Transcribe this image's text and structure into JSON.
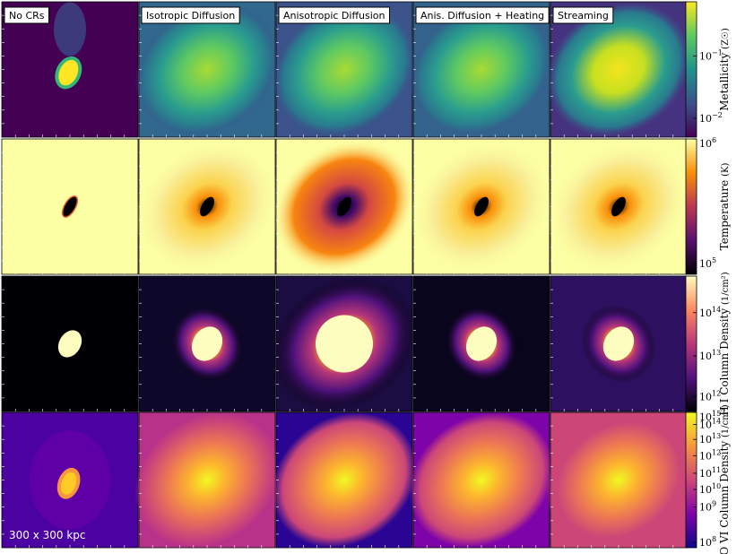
{
  "panels": {
    "column_titles": [
      "No CRs",
      "Isotropic Diffusion",
      "Anisotropic Diffusion",
      "Anis. Diffusion + Heating",
      "Streaming"
    ],
    "scale_label": "300 x 300 kpc"
  },
  "colorbars": [
    {
      "label": "Metallicity",
      "unit": "(Z☉)",
      "ticks": [
        {
          "base": "10",
          "exponent": "−1"
        },
        {
          "base": "10",
          "exponent": "−2"
        }
      ]
    },
    {
      "label": "Temperature",
      "unit": "(K)",
      "ticks": [
        {
          "base": "10",
          "exponent": "6"
        },
        {
          "base": "10",
          "exponent": "5"
        }
      ]
    },
    {
      "label": "H I  Column Density",
      "unit": "(1/cm²)",
      "ticks": [
        {
          "base": "10",
          "exponent": "14"
        },
        {
          "base": "10",
          "exponent": "13"
        },
        {
          "base": "10",
          "exponent": "12"
        }
      ]
    },
    {
      "label": "O VI  Column Density",
      "unit": "(1/cm²)",
      "ticks": [
        {
          "base": "10",
          "exponent": "15"
        },
        {
          "base": "10",
          "exponent": "14"
        },
        {
          "base": "10",
          "exponent": "13"
        },
        {
          "base": "10",
          "exponent": "12"
        },
        {
          "base": "10",
          "exponent": "11"
        },
        {
          "base": "10",
          "exponent": "10"
        },
        {
          "base": "10",
          "exponent": "9"
        },
        {
          "base": "10",
          "exponent": "8"
        }
      ]
    }
  ]
}
